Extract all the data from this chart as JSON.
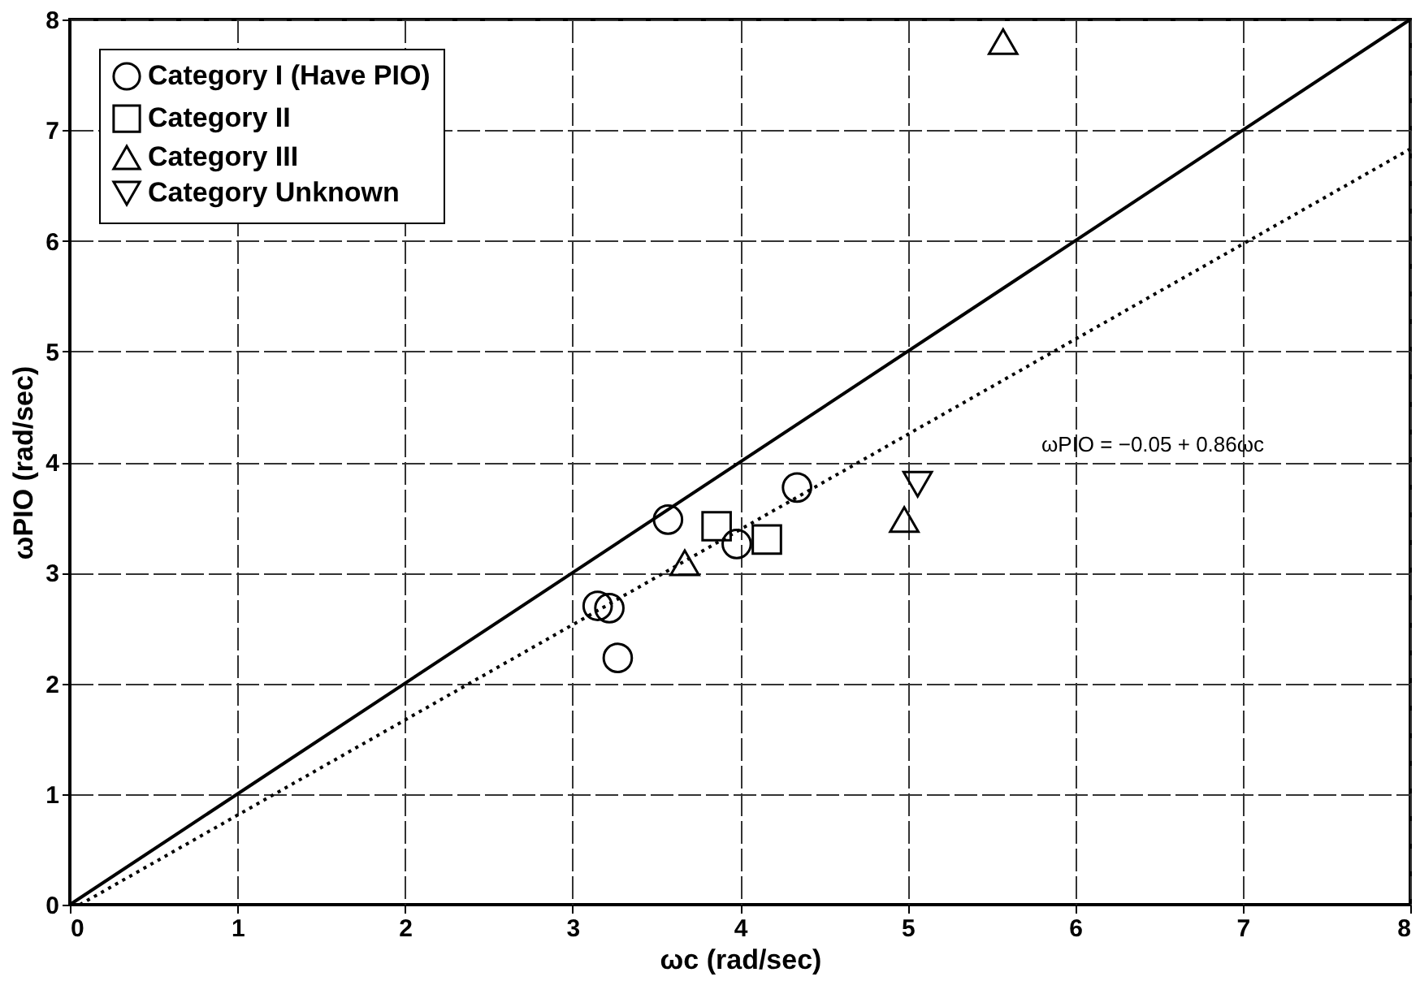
{
  "chart_data": {
    "type": "scatter",
    "xlabel": "ωc  (rad/sec)",
    "ylabel": "ωPIO  (rad/sec)",
    "xlim": [
      0,
      8
    ],
    "ylim": [
      0,
      8
    ],
    "xticks": [
      0,
      1,
      2,
      3,
      4,
      5,
      6,
      7,
      8
    ],
    "yticks": [
      0,
      1,
      2,
      3,
      4,
      5,
      6,
      7,
      8
    ],
    "grid": true,
    "legend": "top left",
    "series": [
      {
        "name": "Category I (Have PIO)",
        "marker": "circle",
        "color": "#000000",
        "x": [
          4.34,
          3.57,
          3.98,
          3.15,
          3.22,
          3.27
        ],
        "values": [
          3.77,
          3.48,
          3.26,
          2.7,
          2.68,
          2.23
        ]
      },
      {
        "name": "Category II",
        "marker": "square",
        "color": "#000000",
        "x": [
          3.86,
          4.16
        ],
        "values": [
          3.42,
          3.3
        ]
      },
      {
        "name": "Category III",
        "marker": "triangle",
        "color": "#000000",
        "x": [
          3.67,
          4.98,
          5.57
        ],
        "values": [
          3.09,
          3.48,
          7.8
        ]
      },
      {
        "name": "Category Unknown",
        "marker": "triangle-down",
        "color": "#000000",
        "x": [
          5.06
        ],
        "values": [
          3.8
        ]
      },
      {
        "type": "line",
        "line_style": "solid",
        "color": "#000000",
        "x": [
          0,
          8
        ],
        "values": [
          0,
          8
        ]
      },
      {
        "type": "line",
        "line_style": "dotted",
        "color": "#000000",
        "x": [
          0.06,
          8
        ],
        "values": [
          0,
          6.83
        ]
      }
    ],
    "annotations": [
      "ωPIO = −0.05 + 0.86ωc"
    ]
  }
}
